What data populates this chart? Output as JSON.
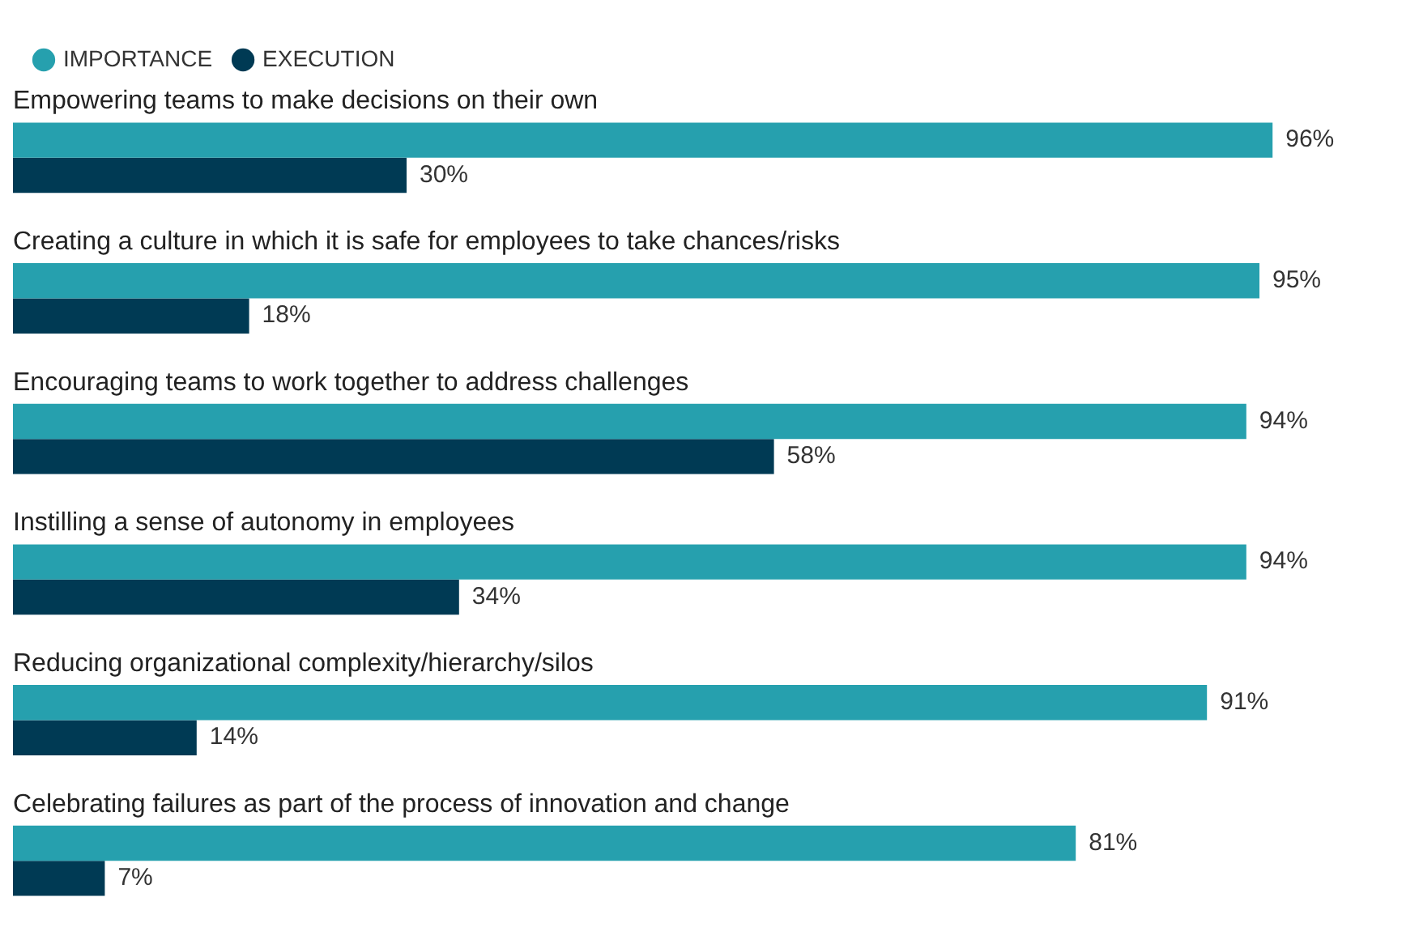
{
  "chart_data": {
    "type": "bar",
    "orientation": "horizontal",
    "categories": [
      "Empowering teams to make decisions on their own",
      "Creating a culture in which it is safe for employees to take chances/risks",
      "Encouraging teams to work together to address challenges",
      "Instilling a sense of autonomy in employees",
      "Reducing organizational complexity/hierarchy/silos",
      "Celebrating failures as part of the process of innovation and change"
    ],
    "series": [
      {
        "name": "IMPORTANCE",
        "color": "#26a0ae",
        "values": [
          96,
          95,
          94,
          94,
          91,
          81
        ],
        "value_labels": [
          "96%",
          "95%",
          "94%",
          "94%",
          "91%",
          "81%"
        ]
      },
      {
        "name": "EXECUTION",
        "color": "#003a54",
        "values": [
          30,
          18,
          58,
          34,
          14,
          7
        ],
        "value_labels": [
          "30%",
          "18%",
          "58%",
          "34%",
          "14%",
          "7%"
        ]
      }
    ],
    "legend": "top left"
  }
}
